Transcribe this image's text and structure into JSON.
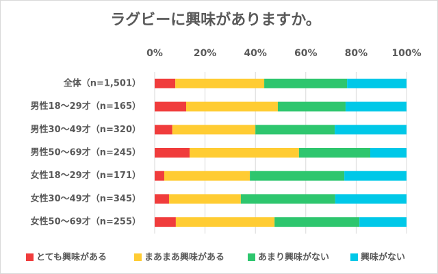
{
  "chart_data": {
    "type": "stacked-barh",
    "title": "ラグビーに興味がありますか。",
    "categories": [
      "全体（n=1,501）",
      "男性18～29才（n=165）",
      "男性30～49才（n=320）",
      "男性50～69才（n=245）",
      "女性18～29才（n=171）",
      "女性30～49才（n=345）",
      "女性50～69才（n=255）"
    ],
    "series": [
      {
        "name": "とても興味がある",
        "color": "#f03c3c",
        "values": [
          8.2,
          12.5,
          7.0,
          13.9,
          3.8,
          5.7,
          8.4
        ]
      },
      {
        "name": "まあまあ興味がある",
        "color": "#ffcc33",
        "values": [
          35.3,
          36.4,
          33.0,
          43.4,
          34.0,
          28.5,
          39.2
        ]
      },
      {
        "name": "あまり興味がない",
        "color": "#2ec66e",
        "values": [
          32.9,
          26.9,
          31.5,
          28.3,
          37.5,
          37.5,
          33.7
        ]
      },
      {
        "name": "興味がない",
        "color": "#00c8e8",
        "values": [
          23.6,
          24.2,
          28.5,
          14.4,
          24.7,
          28.3,
          18.7
        ]
      }
    ],
    "xlim": [
      0,
      100
    ],
    "xticks": [
      {
        "value": 0,
        "label": "0%"
      },
      {
        "value": 20,
        "label": "20%"
      },
      {
        "value": 40,
        "label": "40%"
      },
      {
        "value": 60,
        "label": "60%"
      },
      {
        "value": 80,
        "label": "80%"
      },
      {
        "value": 100,
        "label": "100%"
      }
    ],
    "grid": true
  }
}
